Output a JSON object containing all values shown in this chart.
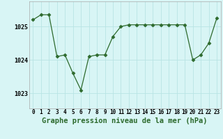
{
  "x": [
    0,
    1,
    2,
    3,
    4,
    5,
    6,
    7,
    8,
    9,
    10,
    11,
    12,
    13,
    14,
    15,
    16,
    17,
    18,
    19,
    20,
    21,
    22,
    23
  ],
  "y": [
    1025.2,
    1025.35,
    1025.35,
    1024.1,
    1024.15,
    1023.6,
    1023.1,
    1024.1,
    1024.15,
    1024.15,
    1024.7,
    1025.0,
    1025.05,
    1025.05,
    1025.05,
    1025.05,
    1025.05,
    1025.05,
    1025.05,
    1025.05,
    1024.0,
    1024.15,
    1024.5,
    1025.25
  ],
  "line_color": "#2d6a2d",
  "marker": "D",
  "marker_size": 2.5,
  "bg_color": "#d8f5f5",
  "grid_color": "#b8e4e4",
  "ytick_labels": [
    "1023",
    "1024",
    "1025"
  ],
  "ytick_values": [
    1023,
    1024,
    1025
  ],
  "ylim": [
    1022.55,
    1025.75
  ],
  "xlim": [
    -0.5,
    23.5
  ],
  "title": "Graphe pression niveau de la mer (hPa)",
  "title_color": "#2d6a2d",
  "title_fontsize": 7.5,
  "tick_fontsize": 5.5
}
